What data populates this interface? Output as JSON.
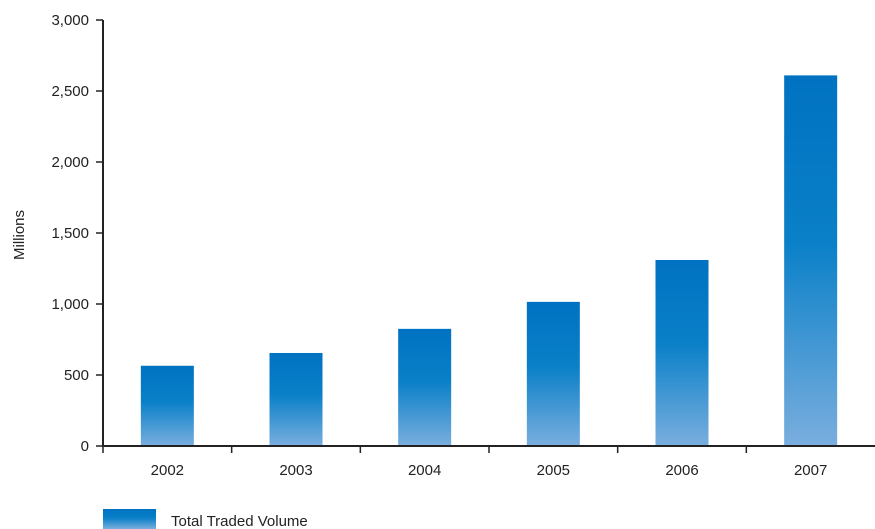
{
  "chart_data": {
    "type": "bar",
    "title": "",
    "xlabel": "",
    "ylabel": "Millions",
    "categories": [
      "2002",
      "2003",
      "2004",
      "2005",
      "2006",
      "2007"
    ],
    "series": [
      {
        "name": "Total Traded Volume",
        "values": [
          565,
          655,
          825,
          1015,
          1310,
          2610
        ]
      }
    ],
    "ylim": [
      0,
      3000
    ],
    "yticks": [
      0,
      500,
      1000,
      1500,
      2000,
      2500,
      3000
    ],
    "ytick_labels": [
      "0",
      "500",
      "1,000",
      "1,500",
      "2,000",
      "2,500",
      "3,000"
    ],
    "grid": false,
    "legend_position": "bottom-left",
    "colors": {
      "bar_top": "#0072c1",
      "bar_bottom": "#7aaede",
      "axis": "#222222"
    }
  }
}
